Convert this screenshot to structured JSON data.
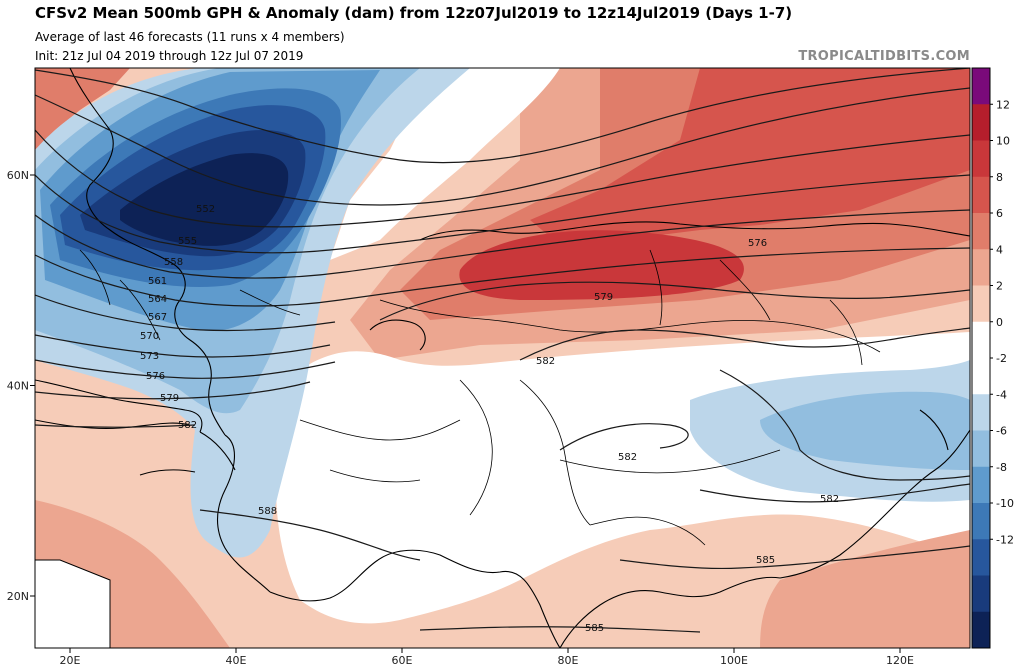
{
  "header": {
    "title": "CFSv2 Mean 500mb GPH & Anomaly (dam) from 12z07Jul2019 to 12z14Jul2019 (Days 1-7)",
    "subtitle_1": "Average of last 46 forecasts (11 runs x 4 members)",
    "subtitle_2": "Init: 21z Jul 04 2019 through 12z Jul 07 2019",
    "brand": "TROPICALTIDBITS.COM"
  },
  "axes": {
    "lon_labels": [
      "20E",
      "40E",
      "60E",
      "80E",
      "100E",
      "120E"
    ],
    "lon_values": [
      20,
      40,
      60,
      80,
      100,
      120
    ],
    "lat_labels": [
      "60N",
      "40N",
      "20N"
    ],
    "lat_values": [
      60,
      40,
      20
    ]
  },
  "colorbar": {
    "labels": [
      "12",
      "10",
      "8",
      "6",
      "4",
      "2",
      "0",
      "-2",
      "-4",
      "-6",
      "-8",
      "-10",
      "-12"
    ],
    "bins": [
      {
        "color": "#7a0a7a"
      },
      {
        "color": "#b51e2c"
      },
      {
        "color": "#c9373a"
      },
      {
        "color": "#d6554d"
      },
      {
        "color": "#e07d6a"
      },
      {
        "color": "#eca690"
      },
      {
        "color": "#f6ccb8"
      },
      {
        "color": "#ffffff"
      },
      {
        "color": "#ffffff"
      },
      {
        "color": "#bcd6ea"
      },
      {
        "color": "#92bedf"
      },
      {
        "color": "#5f9bcd"
      },
      {
        "color": "#3d79b7"
      },
      {
        "color": "#27579d"
      },
      {
        "color": "#193b7c"
      },
      {
        "color": "#0d2256"
      }
    ]
  },
  "contours": {
    "north_labels": [
      "552",
      "555",
      "558",
      "561",
      "564",
      "567",
      "570",
      "573",
      "576",
      "579",
      "582"
    ],
    "east_labels": [
      "576",
      "579",
      "582"
    ],
    "south_labels": [
      "582",
      "582",
      "588",
      "585",
      "585"
    ]
  }
}
